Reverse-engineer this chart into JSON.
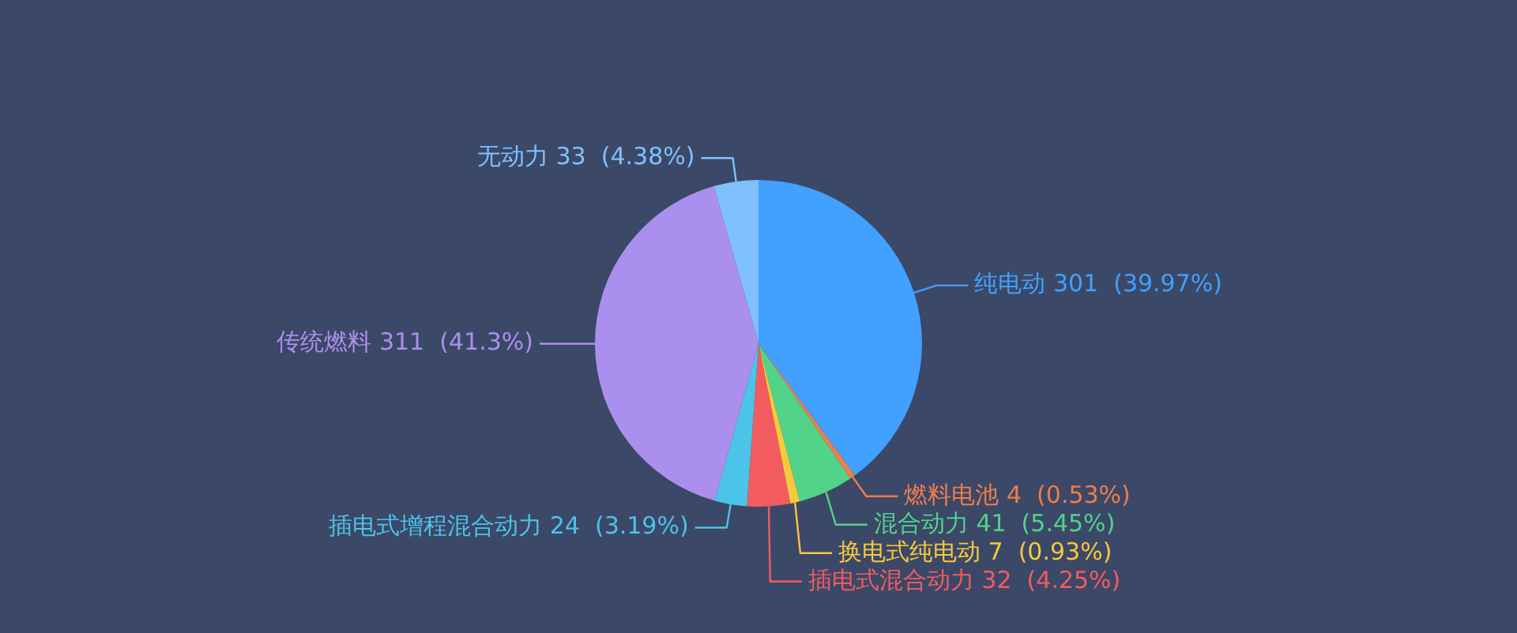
{
  "chart_data": {
    "type": "pie",
    "categories": [
      "纯电动",
      "燃料电池",
      "混合动力",
      "换电式纯电动",
      "插电式混合动力",
      "插电式增程混合动力",
      "传统燃料",
      "无动力"
    ],
    "values": [
      301,
      4,
      41,
      7,
      32,
      24,
      311,
      33
    ],
    "value_labels": [
      "301  (39.97%)",
      "4  (0.53%)",
      "41  (5.45%)",
      "7  (0.93%)",
      "32  (4.25%)",
      "24  (3.19%)",
      "311  (41.3%)",
      "33  (4.38%)"
    ],
    "colors": [
      "#42a0ff",
      "#f07d4a",
      "#52d38a",
      "#f8c83d",
      "#f25c5e",
      "#4cc3e8",
      "#ab8fee",
      "#80c0ff"
    ],
    "legend": false
  }
}
